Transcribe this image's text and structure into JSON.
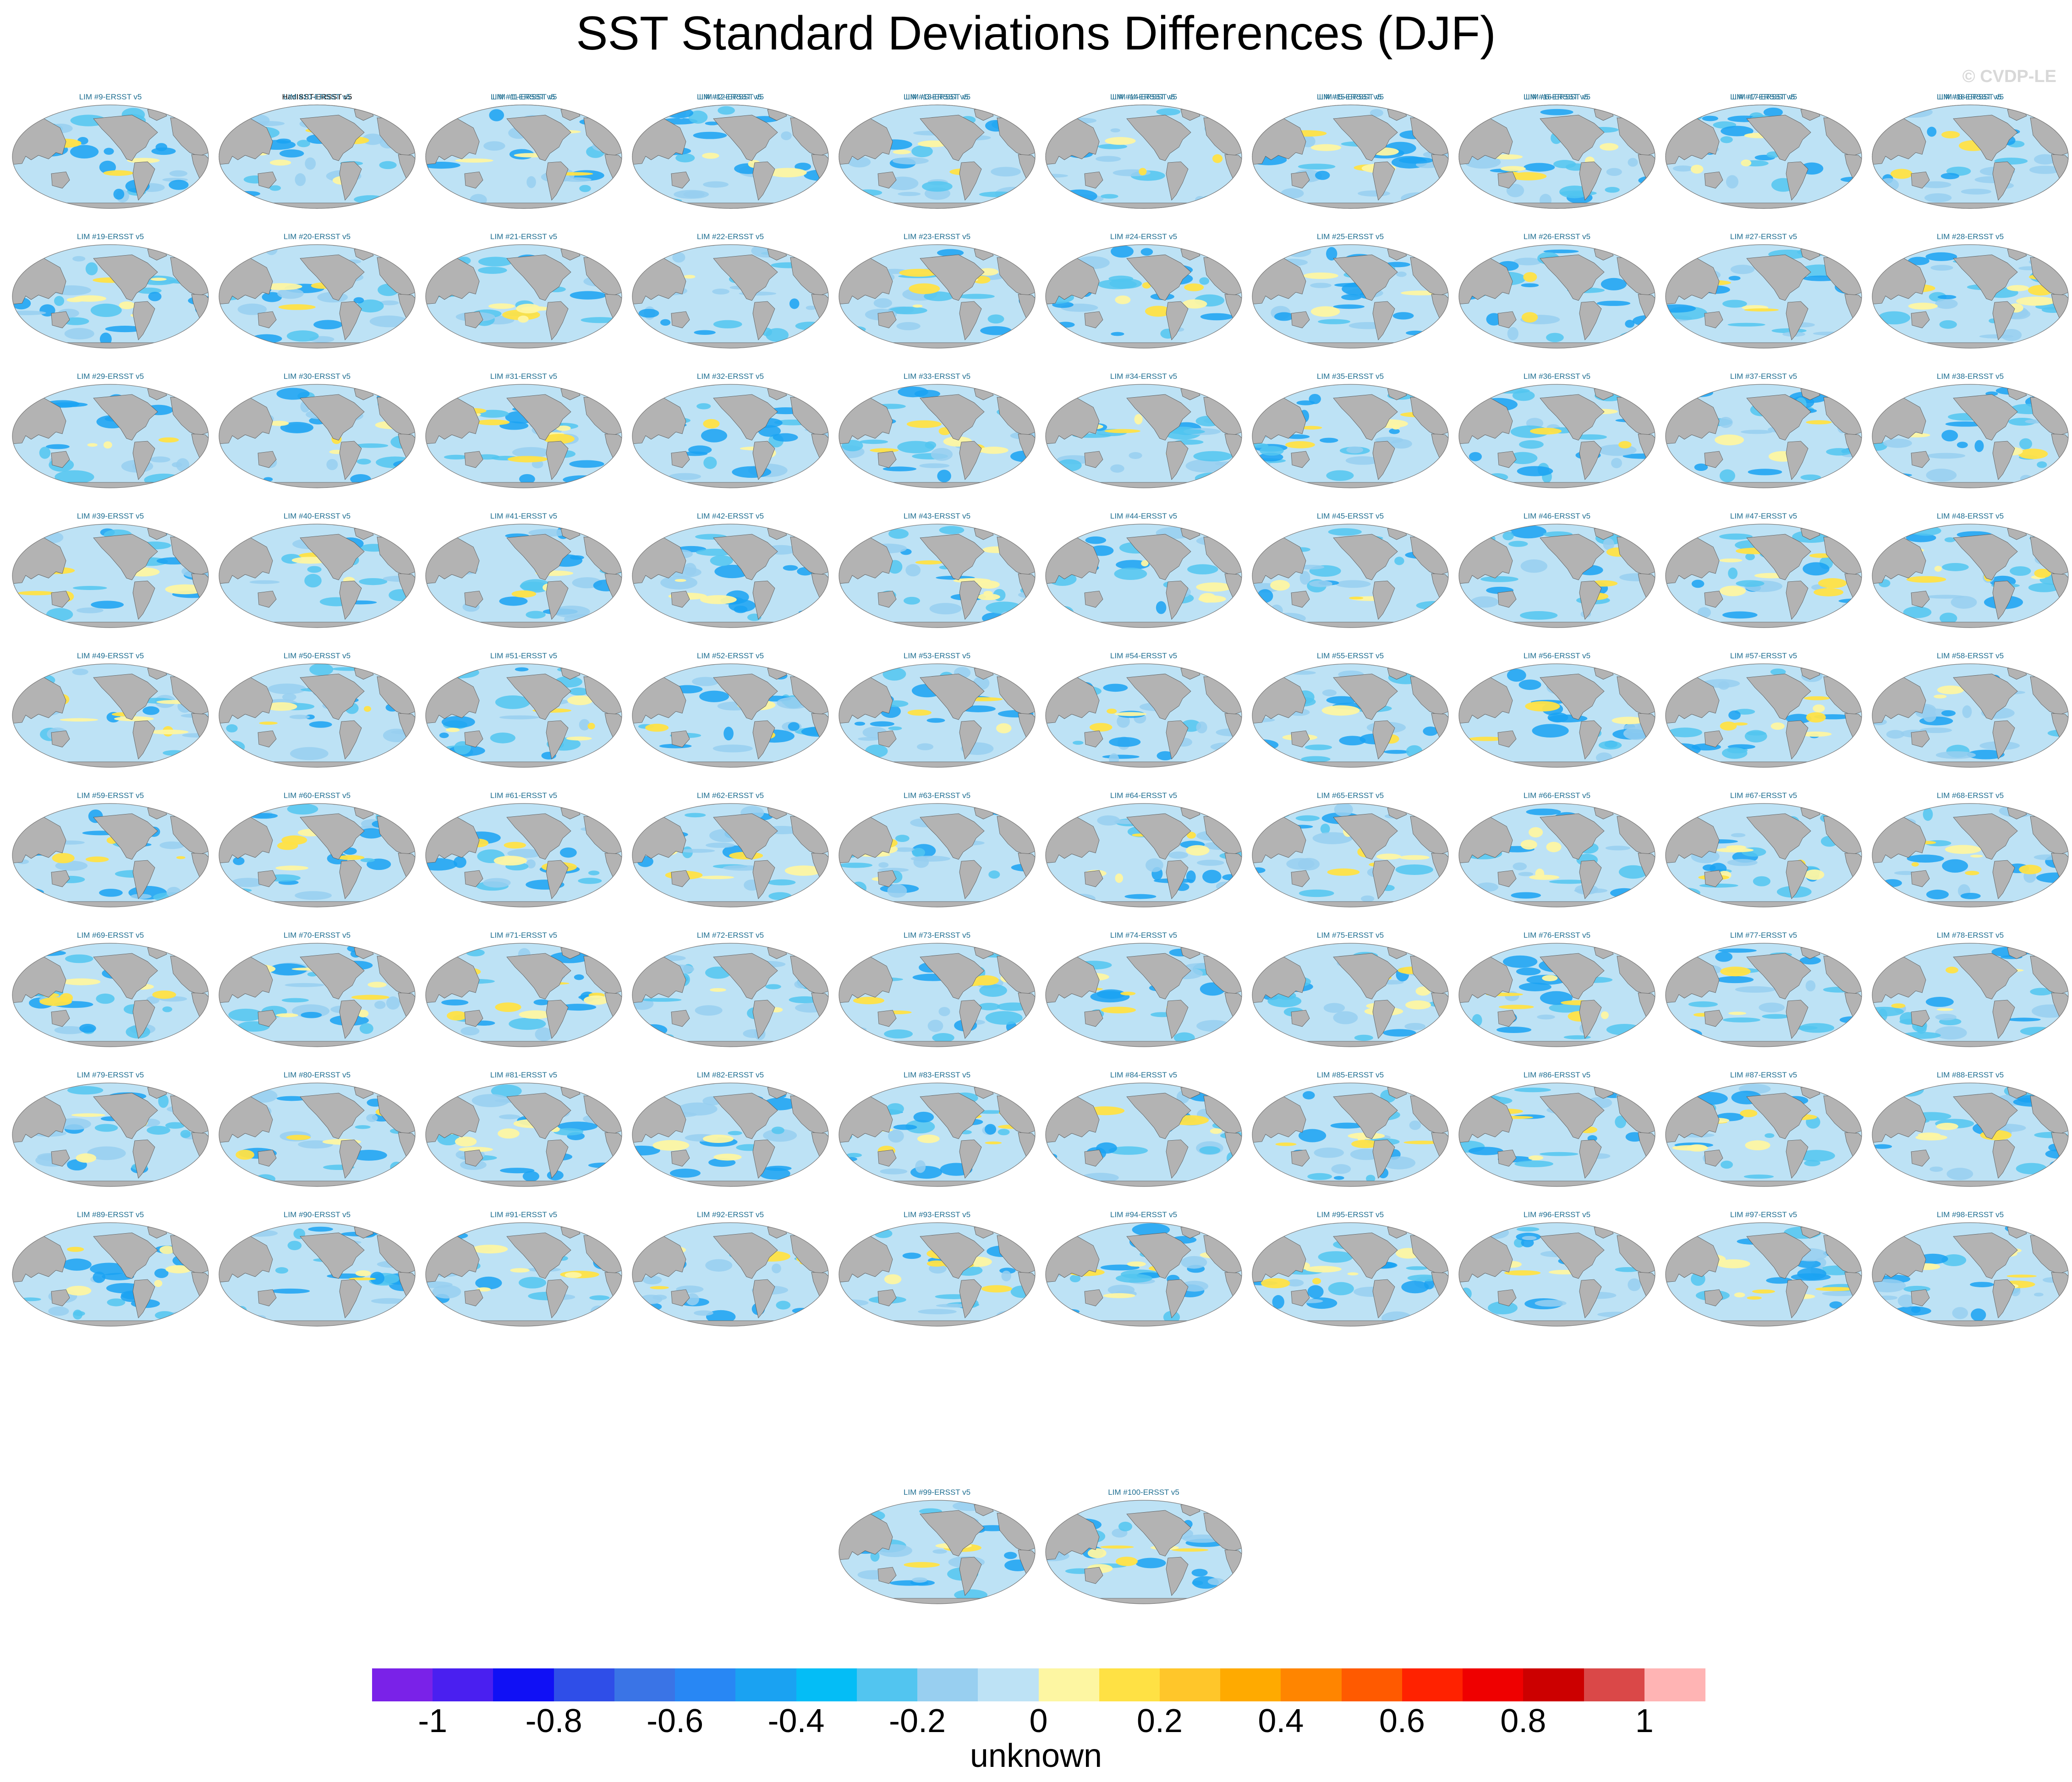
{
  "title": "SST Standard Deviations Differences (DJF)",
  "watermark": "© CVDP-LE",
  "chart_data": {
    "type": "heatmap",
    "title": "SST Standard Deviations Differences (DJF)",
    "projection": "global map (robinson-like)",
    "panel_titles": [
      "HadISST-ERSST v5",
      "LIM #1-ERSST v5",
      "LIM #2-ERSST v5",
      "LIM #3-ERSST v5",
      "LIM #4-ERSST v5",
      "LIM #5-ERSST v5",
      "LIM #6-ERSST v5",
      "LIM #7-ERSST v5",
      "LIM #8-ERSST v5",
      "LIM #9-ERSST v5",
      "LIM #10-ERSST v5",
      "LIM #11-ERSST v5",
      "LIM #12-ERSST v5",
      "LIM #13-ERSST v5",
      "LIM #14-ERSST v5",
      "LIM #15-ERSST v5",
      "LIM #16-ERSST v5",
      "LIM #17-ERSST v5",
      "LIM #18-ERSST v5",
      "LIM #19-ERSST v5",
      "LIM #20-ERSST v5",
      "LIM #21-ERSST v5",
      "LIM #22-ERSST v5",
      "LIM #23-ERSST v5",
      "LIM #24-ERSST v5",
      "LIM #25-ERSST v5",
      "LIM #26-ERSST v5",
      "LIM #27-ERSST v5",
      "LIM #28-ERSST v5",
      "LIM #29-ERSST v5",
      "LIM #30-ERSST v5",
      "LIM #31-ERSST v5",
      "LIM #32-ERSST v5",
      "LIM #33-ERSST v5",
      "LIM #34-ERSST v5",
      "LIM #35-ERSST v5",
      "LIM #36-ERSST v5",
      "LIM #37-ERSST v5",
      "LIM #38-ERSST v5",
      "LIM #39-ERSST v5",
      "LIM #40-ERSST v5",
      "LIM #41-ERSST v5",
      "LIM #42-ERSST v5",
      "LIM #43-ERSST v5",
      "LIM #44-ERSST v5",
      "LIM #45-ERSST v5",
      "LIM #46-ERSST v5",
      "LIM #47-ERSST v5",
      "LIM #48-ERSST v5",
      "LIM #49-ERSST v5",
      "LIM #50-ERSST v5",
      "LIM #51-ERSST v5",
      "LIM #52-ERSST v5",
      "LIM #53-ERSST v5",
      "LIM #54-ERSST v5",
      "LIM #55-ERSST v5",
      "LIM #56-ERSST v5",
      "LIM #57-ERSST v5",
      "LIM #58-ERSST v5",
      "LIM #59-ERSST v5",
      "LIM #60-ERSST v5",
      "LIM #61-ERSST v5",
      "LIM #62-ERSST v5",
      "LIM #63-ERSST v5",
      "LIM #64-ERSST v5",
      "LIM #65-ERSST v5",
      "LIM #66-ERSST v5",
      "LIM #67-ERSST v5",
      "LIM #68-ERSST v5",
      "LIM #69-ERSST v5",
      "LIM #70-ERSST v5",
      "LIM #71-ERSST v5",
      "LIM #72-ERSST v5",
      "LIM #73-ERSST v5",
      "LIM #74-ERSST v5",
      "LIM #75-ERSST v5",
      "LIM #76-ERSST v5",
      "LIM #77-ERSST v5",
      "LIM #78-ERSST v5",
      "LIM #79-ERSST v5",
      "LIM #80-ERSST v5",
      "LIM #81-ERSST v5",
      "LIM #82-ERSST v5",
      "LIM #83-ERSST v5",
      "LIM #84-ERSST v5",
      "LIM #85-ERSST v5",
      "LIM #86-ERSST v5",
      "LIM #87-ERSST v5",
      "LIM #88-ERSST v5",
      "LIM #89-ERSST v5",
      "LIM #90-ERSST v5",
      "LIM #91-ERSST v5",
      "LIM #92-ERSST v5",
      "LIM #93-ERSST v5",
      "LIM #94-ERSST v5",
      "LIM #95-ERSST v5",
      "LIM #96-ERSST v5",
      "LIM #97-ERSST v5",
      "LIM #98-ERSST v5",
      "LIM #99-ERSST v5",
      "LIM #100-ERSST v5"
    ],
    "colorbar": {
      "label": "unknown",
      "range": [
        -1.1,
        1.1
      ],
      "levels": [
        -1,
        -0.9,
        -0.8,
        -0.7,
        -0.6,
        -0.5,
        -0.4,
        -0.3,
        -0.2,
        -0.1,
        0,
        0.1,
        0.2,
        0.3,
        0.4,
        0.5,
        0.6,
        0.7,
        0.8,
        0.9,
        1
      ],
      "tick_labels": [
        "-1",
        "-0.8",
        "-0.6",
        "-0.4",
        "-0.2",
        "0",
        "0.2",
        "0.4",
        "0.6",
        "0.8",
        "1"
      ],
      "colors": [
        "#7a22e8",
        "#4a1ff0",
        "#1010f5",
        "#2f4ee8",
        "#3a74e6",
        "#2887f4",
        "#1aa2f2",
        "#04bdf6",
        "#52c5f0",
        "#98cff0",
        "#bde2f5",
        "#fdf6a2",
        "#ffe144",
        "#ffc62a",
        "#ffaa00",
        "#ff8500",
        "#ff5a00",
        "#ff2200",
        "#ef0000",
        "#cc0000",
        "#da4848",
        "#ffb4b4"
      ]
    },
    "map_colors": {
      "land": "#b3b3b3",
      "ocean_dominant": "#bde2f5",
      "negative_patches": [
        "#98cff0",
        "#52c5f0",
        "#1aa2f2"
      ],
      "positive_patches": [
        "#fdf6a2",
        "#ffe144"
      ]
    }
  }
}
